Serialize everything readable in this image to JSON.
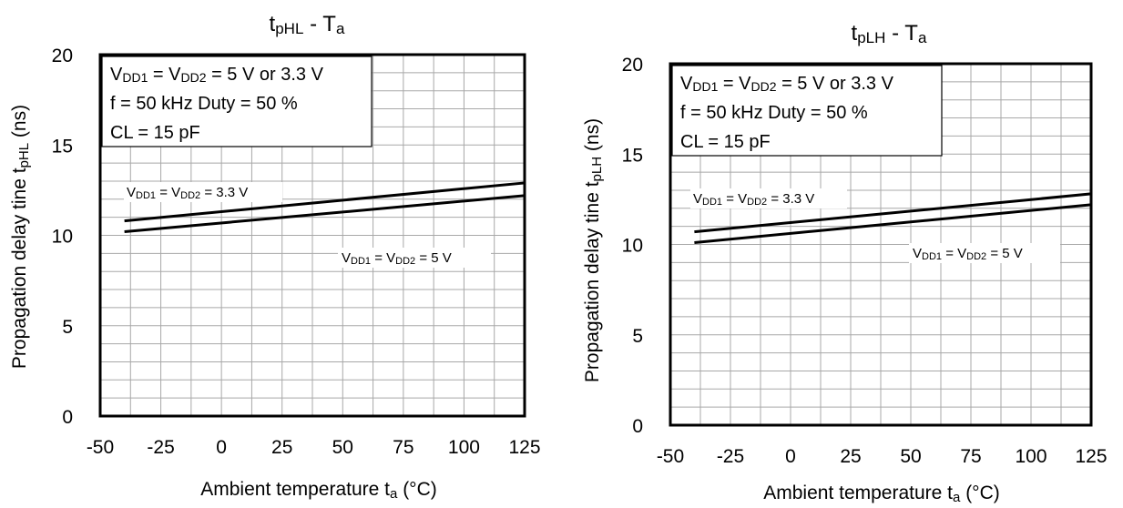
{
  "chart_data": [
    {
      "type": "line",
      "title": {
        "base": "t",
        "sub": "pHL",
        "rest": " - T",
        "sub2": "a"
      },
      "xlabel": {
        "base": "Ambient temperature t",
        "sub": "a",
        "rest": " (°C)"
      },
      "ylabel": {
        "base": "Propagation delay tine t",
        "sub": "pHL",
        "rest": " (ns)"
      },
      "xlim": [
        -50,
        125
      ],
      "ylim": [
        0,
        20
      ],
      "xticks": [
        "-50",
        "-25",
        "0",
        "25",
        "50",
        "75",
        "100",
        "125"
      ],
      "yticks": [
        "0",
        "5",
        "10",
        "15",
        "20"
      ],
      "grid": true,
      "conditions": {
        "line1": {
          "a": "V",
          "a_sub": "DD1",
          "b": " = V",
          "b_sub": "DD2",
          "c": " = 5 V or 3.3 V"
        },
        "line2": "f = 50 kHz Duty = 50 %",
        "line3": "CL = 15 pF"
      },
      "series": [
        {
          "label": {
            "a": "V",
            "a_sub": "DD1",
            "b": " = V",
            "b_sub": "DD2",
            "c": " = 3.3 V"
          },
          "x": [
            -40,
            125
          ],
          "y": [
            10.8,
            12.9
          ]
        },
        {
          "label": {
            "a": "V",
            "a_sub": "DD1",
            "b": " = V",
            "b_sub": "DD2",
            "c": " = 5 V"
          },
          "x": [
            -40,
            125
          ],
          "y": [
            10.2,
            12.2
          ]
        }
      ]
    },
    {
      "type": "line",
      "title": {
        "base": "t",
        "sub": "pLH",
        "rest": " - T",
        "sub2": "a"
      },
      "xlabel": {
        "base": "Ambient temperature t",
        "sub": "a",
        "rest": " (°C)"
      },
      "ylabel": {
        "base": "Propagation delay tine t",
        "sub": "pLH",
        "rest": " (ns)"
      },
      "xlim": [
        -50,
        125
      ],
      "ylim": [
        0,
        20
      ],
      "xticks": [
        "-50",
        "-25",
        "0",
        "25",
        "50",
        "75",
        "100",
        "125"
      ],
      "yticks": [
        "0",
        "5",
        "10",
        "15",
        "20"
      ],
      "grid": true,
      "conditions": {
        "line1": {
          "a": "V",
          "a_sub": "DD1",
          "b": " = V",
          "b_sub": "DD2",
          "c": " = 5 V or 3.3 V"
        },
        "line2": "f = 50 kHz Duty = 50 %",
        "line3": "CL = 15 pF"
      },
      "series": [
        {
          "label": {
            "a": "V",
            "a_sub": "DD1",
            "b": " = V",
            "b_sub": "DD2",
            "c": " = 3.3 V"
          },
          "x": [
            -40,
            125
          ],
          "y": [
            10.7,
            12.8
          ]
        },
        {
          "label": {
            "a": "V",
            "a_sub": "DD1",
            "b": " = V",
            "b_sub": "DD2",
            "c": " = 5 V"
          },
          "x": [
            -40,
            125
          ],
          "y": [
            10.1,
            12.2
          ]
        }
      ]
    }
  ]
}
